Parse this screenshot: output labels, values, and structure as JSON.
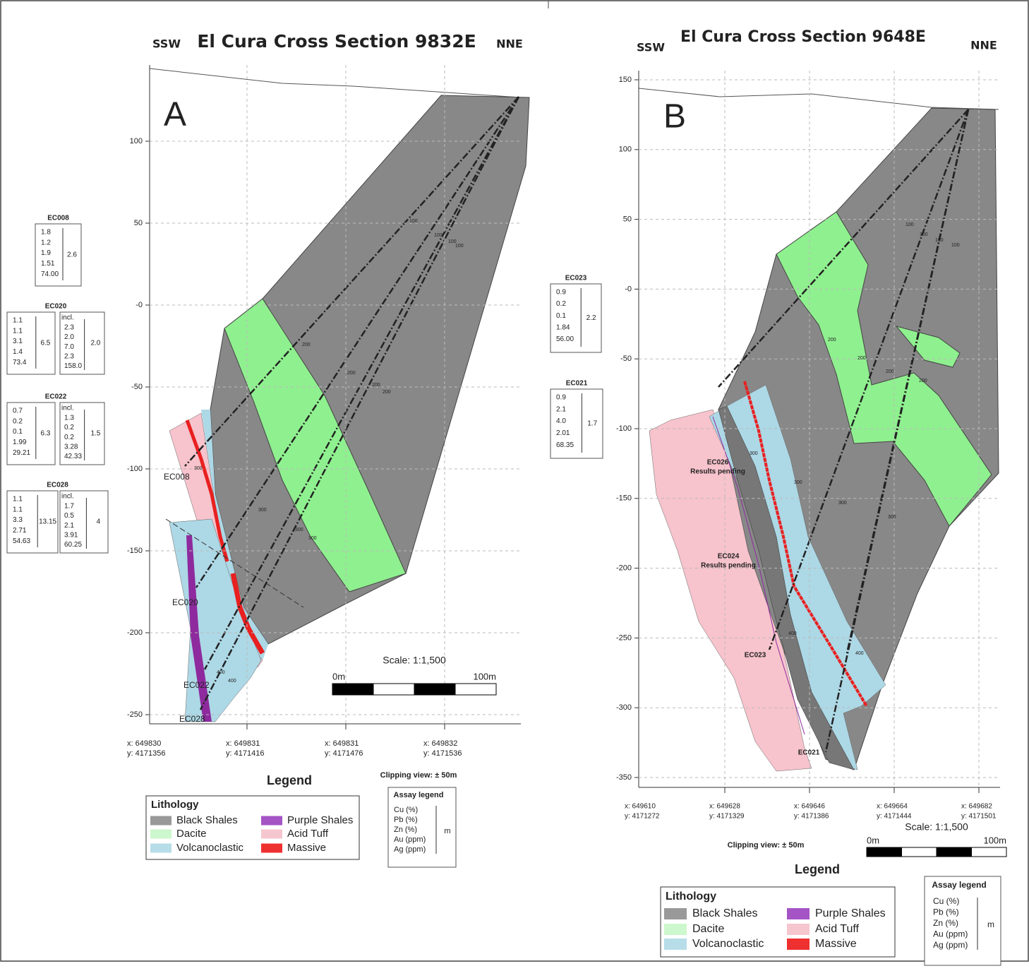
{
  "panels": [
    {
      "letter": "A",
      "title": "El Cura Cross Section 9832E",
      "left_direction": "SSW",
      "right_direction": "NNE",
      "y_ticks": [
        "100",
        "50",
        "-0",
        "-50",
        "-100",
        "-150",
        "-200",
        "-250"
      ],
      "x_ticks": [
        [
          "x: 649830",
          "y: 4171356"
        ],
        [
          "x: 649831",
          "y: 4171416"
        ],
        [
          "x: 649831",
          "y: 4171476"
        ],
        [
          "x: 649832",
          "y: 4171536"
        ]
      ],
      "hole_labels": [
        "EC008",
        "EC020",
        "EC022",
        "EC028"
      ],
      "depth_marks": [
        "100",
        "100",
        "100",
        "100",
        "200",
        "200",
        "200",
        "200",
        "300",
        "300",
        "300",
        "300",
        "400",
        "400"
      ],
      "scale": "Scale: 1:1,500",
      "scale_start": "0m",
      "scale_end": "100m",
      "clipping": "Clipping view: ± 50m",
      "assays": [
        {
          "hole": "EC008",
          "values": [
            "1.8",
            "1.2",
            "1.9",
            "1.51",
            "74.00"
          ],
          "length": "2.6"
        },
        {
          "hole": "EC020",
          "values": [
            "1.1",
            "1.1",
            "3.1",
            "1.4",
            "73.4"
          ],
          "length": "6.5",
          "incl_label": "incl.",
          "incl_values": [
            "2.3",
            "2.0",
            "7.0",
            "2.3",
            "158.0"
          ],
          "incl_length": "2.0"
        },
        {
          "hole": "EC022",
          "values": [
            "0.7",
            "0.2",
            "0.1",
            "1.99",
            "29.21"
          ],
          "length": "6.3",
          "incl_label": "incl.",
          "incl_values": [
            "1.3",
            "0.2",
            "0.2",
            "3.28",
            "42.33"
          ],
          "incl_length": "1.5"
        },
        {
          "hole": "EC028",
          "values": [
            "1.1",
            "1.1",
            "3.3",
            "2.71",
            "54.63"
          ],
          "length": "13.15",
          "incl_label": "incl.",
          "incl_values": [
            "1.7",
            "0.5",
            "2.1",
            "3.91",
            "60.25"
          ],
          "incl_length": "4"
        }
      ],
      "legend": {
        "title": "Legend",
        "heading": "Lithology",
        "items": [
          {
            "name": "Black Shales",
            "color": "#999999"
          },
          {
            "name": "Dacite",
            "color": "#cdf7cd"
          },
          {
            "name": "Volcanoclastic",
            "color": "#b7dde9"
          },
          {
            "name": "Purple Shales",
            "color": "#a454c4"
          },
          {
            "name": "Acid Tuff",
            "color": "#f6c6cf"
          },
          {
            "name": "Massive",
            "color": "#ee3030"
          }
        ]
      },
      "assay_legend": {
        "title": "Assay legend",
        "items": [
          "Cu (%)",
          "Pb (%)",
          "Zn (%)",
          "Au (ppm)",
          "Ag (ppm)"
        ],
        "unit": "m"
      }
    },
    {
      "letter": "B",
      "title": "El Cura Cross Section 9648E",
      "left_direction": "SSW",
      "right_direction": "NNE",
      "y_ticks": [
        "150",
        "100",
        "50",
        "-0",
        "-50",
        "-100",
        "-150",
        "-200",
        "-250",
        "-300",
        "-350"
      ],
      "x_ticks": [
        [
          "x: 649610",
          "y: 4171272"
        ],
        [
          "x: 649628",
          "y: 4171329"
        ],
        [
          "x: 649646",
          "y: 4171386"
        ],
        [
          "x: 649664",
          "y: 4171444"
        ],
        [
          "x: 649682",
          "y: 4171501"
        ]
      ],
      "hole_labels": [
        "EC026",
        "Results pending",
        "EC024",
        "Results pending",
        "EC023",
        "EC021"
      ],
      "depth_marks": [
        "100",
        "100",
        "100",
        "100",
        "200",
        "200",
        "200",
        "200",
        "300",
        "300",
        "300",
        "300",
        "400",
        "400"
      ],
      "scale": "Scale: 1:1,500",
      "scale_start": "0m",
      "scale_end": "100m",
      "clipping": "Clipping view: ± 50m",
      "assays": [
        {
          "hole": "EC023",
          "values": [
            "0.9",
            "0.2",
            "0.1",
            "1.84",
            "56.00"
          ],
          "length": "2.2"
        },
        {
          "hole": "EC021",
          "values": [
            "0.9",
            "2.1",
            "4.0",
            "2.01",
            "68.35"
          ],
          "length": "1.7"
        }
      ],
      "legend": {
        "title": "Legend",
        "heading": "Lithology",
        "items": [
          {
            "name": "Black Shales",
            "color": "#999999"
          },
          {
            "name": "Dacite",
            "color": "#cdf7cd"
          },
          {
            "name": "Volcanoclastic",
            "color": "#b7dde9"
          },
          {
            "name": "Purple Shales",
            "color": "#a454c4"
          },
          {
            "name": "Acid Tuff",
            "color": "#f6c6cf"
          },
          {
            "name": "Massive",
            "color": "#ee3030"
          }
        ]
      },
      "assay_legend": {
        "title": "Assay legend",
        "items": [
          "Cu (%)",
          "Pb (%)",
          "Zn (%)",
          "Au (ppm)",
          "Ag (ppm)"
        ],
        "unit": "m"
      }
    }
  ]
}
